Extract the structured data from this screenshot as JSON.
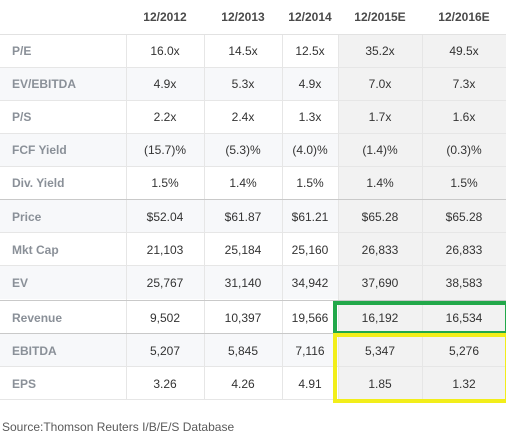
{
  "columns": [
    "12/2012",
    "12/2013",
    "12/2014",
    "12/2015E",
    "12/2016E"
  ],
  "rows": [
    {
      "label": "P/E",
      "values": [
        "16.0x",
        "14.5x",
        "12.5x",
        "35.2x",
        "49.5x"
      ]
    },
    {
      "label": "EV/EBITDA",
      "values": [
        "4.9x",
        "5.3x",
        "4.9x",
        "7.0x",
        "7.3x"
      ]
    },
    {
      "label": "P/S",
      "values": [
        "2.2x",
        "2.4x",
        "1.3x",
        "1.7x",
        "1.6x"
      ]
    },
    {
      "label": "FCF Yield",
      "values": [
        "(15.7)%",
        "(5.3)%",
        "(4.0)%",
        "(1.4)%",
        "(0.3)%"
      ]
    },
    {
      "label": "Div. Yield",
      "values": [
        "1.5%",
        "1.4%",
        "1.5%",
        "1.4%",
        "1.5%"
      ]
    },
    {
      "label": "Price",
      "values": [
        "$52.04",
        "$61.87",
        "$61.21",
        "$65.28",
        "$65.28"
      ]
    },
    {
      "label": "Mkt Cap",
      "values": [
        "21,103",
        "25,184",
        "25,160",
        "26,833",
        "26,833"
      ]
    },
    {
      "label": "EV",
      "values": [
        "25,767",
        "31,140",
        "34,942",
        "37,690",
        "38,583"
      ]
    },
    {
      "label": "Revenue",
      "values": [
        "9,502",
        "10,397",
        "19,566",
        "16,192",
        "16,534"
      ]
    },
    {
      "label": "EBITDA",
      "values": [
        "5,207",
        "5,845",
        "7,116",
        "5,347",
        "5,276"
      ]
    },
    {
      "label": "EPS",
      "values": [
        "3.26",
        "4.26",
        "4.91",
        "1.85",
        "1.32"
      ]
    }
  ],
  "source": "Source:Thomson Reuters I/B/E/S Database",
  "highlight_colors": {
    "revenue_estimate": "#22a84a",
    "ebitda_eps_estimate": "#f2ee1a"
  }
}
